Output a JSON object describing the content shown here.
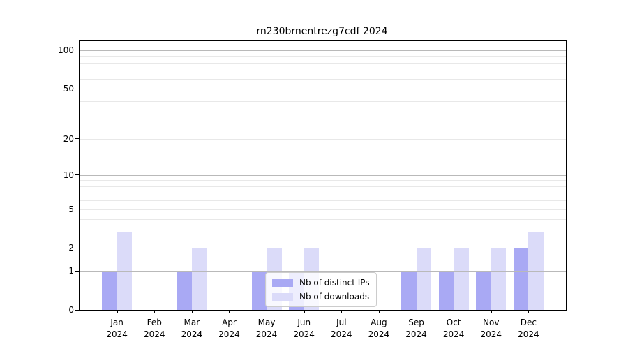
{
  "figure": {
    "background": "#ffffff"
  },
  "chart_data": {
    "type": "bar",
    "title": "rn230brnentrezg7cdf 2024",
    "year": "2024",
    "categories": [
      "Jan",
      "Feb",
      "Mar",
      "Apr",
      "May",
      "Jun",
      "Jul",
      "Aug",
      "Sep",
      "Oct",
      "Nov",
      "Dec"
    ],
    "x_tick_labels": [
      [
        "Jan",
        "2024"
      ],
      [
        "Feb",
        "2024"
      ],
      [
        "Mar",
        "2024"
      ],
      [
        "Apr",
        "2024"
      ],
      [
        "May",
        "2024"
      ],
      [
        "Jun",
        "2024"
      ],
      [
        "Jul",
        "2024"
      ],
      [
        "Aug",
        "2024"
      ],
      [
        "Sep",
        "2024"
      ],
      [
        "Oct",
        "2024"
      ],
      [
        "Nov",
        "2024"
      ],
      [
        "Dec",
        "2024"
      ]
    ],
    "series": [
      {
        "name": "Nb of distinct IPs",
        "color": "#a9a9f4",
        "values": [
          1,
          0,
          1,
          0,
          1,
          1,
          0,
          0,
          1,
          1,
          1,
          2
        ]
      },
      {
        "name": "Nb of downloads",
        "color": "#dbdbf9",
        "values": [
          3,
          0,
          2,
          0,
          2,
          2,
          0,
          0,
          2,
          2,
          2,
          3
        ]
      }
    ],
    "y_axis": {
      "scale": "log1p",
      "tick_values": [
        100,
        50,
        20,
        10,
        5,
        2,
        1,
        0
      ],
      "major_gridlines": [
        1,
        10,
        100
      ],
      "minor_gridlines": [
        2,
        3,
        4,
        5,
        6,
        7,
        8,
        9,
        20,
        30,
        40,
        50,
        60,
        70,
        80,
        90
      ],
      "top_value": 117.6,
      "ylim": [
        0,
        117.6
      ],
      "major_grid_color": "#b9b9b9",
      "minor_grid_color": "#e8e8e8",
      "grid": true
    },
    "legend": {
      "position": "inside-lower-center",
      "items": [
        {
          "label": "Nb of distinct IPs",
          "color": "#a9a9f4"
        },
        {
          "label": "Nb of downloads",
          "color": "#dbdbf9"
        }
      ]
    }
  }
}
